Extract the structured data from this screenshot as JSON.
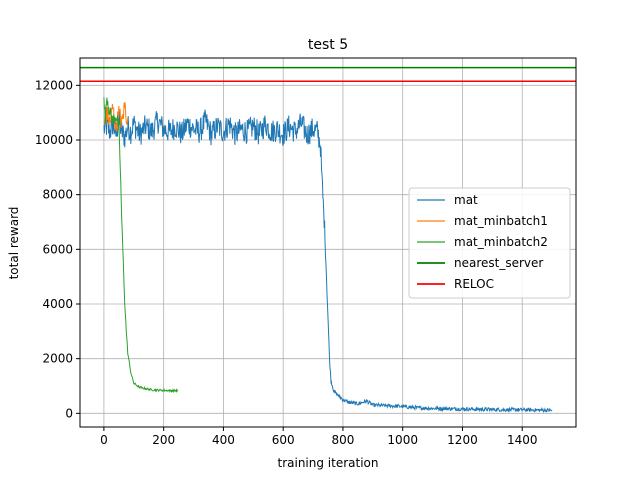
{
  "chart_data": {
    "type": "line",
    "title": "test 5",
    "xlabel": "training iteration",
    "ylabel": "total reward",
    "xlim": [
      -80,
      1580
    ],
    "ylim": [
      -500,
      13000
    ],
    "xticks": [
      0,
      200,
      400,
      600,
      800,
      1000,
      1200,
      1400
    ],
    "yticks": [
      0,
      2000,
      4000,
      6000,
      8000,
      10000,
      12000
    ],
    "grid": true,
    "legend_position": "center-right",
    "series": [
      {
        "name": "mat",
        "color": "#1f77b4",
        "style": "thin",
        "points": [
          [
            0,
            10400
          ],
          [
            10,
            10500
          ],
          [
            20,
            10300
          ],
          [
            30,
            10600
          ],
          [
            40,
            10200
          ],
          [
            50,
            10700
          ],
          [
            60,
            10300
          ],
          [
            70,
            10100
          ],
          [
            80,
            10500
          ],
          [
            90,
            10300
          ],
          [
            100,
            10600
          ],
          [
            120,
            10200
          ],
          [
            140,
            10500
          ],
          [
            160,
            10300
          ],
          [
            180,
            10700
          ],
          [
            200,
            10400
          ],
          [
            220,
            10300
          ],
          [
            240,
            10500
          ],
          [
            260,
            10200
          ],
          [
            280,
            10600
          ],
          [
            300,
            10400
          ],
          [
            320,
            10300
          ],
          [
            340,
            10700
          ],
          [
            360,
            10200
          ],
          [
            380,
            10500
          ],
          [
            400,
            10300
          ],
          [
            420,
            10600
          ],
          [
            440,
            10200
          ],
          [
            460,
            10400
          ],
          [
            480,
            10300
          ],
          [
            500,
            10500
          ],
          [
            520,
            10200
          ],
          [
            540,
            10600
          ],
          [
            560,
            10300
          ],
          [
            580,
            10400
          ],
          [
            600,
            10200
          ],
          [
            620,
            10500
          ],
          [
            640,
            10300
          ],
          [
            660,
            10600
          ],
          [
            680,
            10200
          ],
          [
            700,
            10400
          ],
          [
            715,
            10300
          ],
          [
            725,
            9800
          ],
          [
            730,
            8500
          ],
          [
            740,
            6500
          ],
          [
            745,
            5000
          ],
          [
            750,
            3500
          ],
          [
            755,
            2000
          ],
          [
            760,
            1200
          ],
          [
            770,
            800
          ],
          [
            780,
            700
          ],
          [
            800,
            500
          ],
          [
            820,
            400
          ],
          [
            850,
            350
          ],
          [
            880,
            450
          ],
          [
            900,
            300
          ],
          [
            950,
            280
          ],
          [
            1000,
            250
          ],
          [
            1050,
            200
          ],
          [
            1100,
            180
          ],
          [
            1150,
            170
          ],
          [
            1200,
            160
          ],
          [
            1250,
            150
          ],
          [
            1300,
            140
          ],
          [
            1350,
            130
          ],
          [
            1400,
            130
          ],
          [
            1450,
            120
          ],
          [
            1500,
            110
          ]
        ],
        "noise": 450
      },
      {
        "name": "mat_minbatch1",
        "color": "#ff7f0e",
        "style": "thin",
        "points": [
          [
            0,
            10500
          ],
          [
            10,
            11000
          ],
          [
            20,
            10600
          ],
          [
            30,
            11200
          ],
          [
            40,
            10400
          ],
          [
            50,
            11000
          ],
          [
            60,
            10600
          ],
          [
            70,
            11300
          ],
          [
            75,
            10900
          ],
          [
            80,
            10800
          ]
        ],
        "noise": 350
      },
      {
        "name": "mat_minbatch2",
        "color": "#2ca02c",
        "style": "thin",
        "points": [
          [
            0,
            11400
          ],
          [
            5,
            10800
          ],
          [
            10,
            11600
          ],
          [
            20,
            11000
          ],
          [
            30,
            10700
          ],
          [
            40,
            10900
          ],
          [
            50,
            10500
          ],
          [
            55,
            9000
          ],
          [
            60,
            7000
          ],
          [
            65,
            5500
          ],
          [
            70,
            4000
          ],
          [
            75,
            3000
          ],
          [
            80,
            2200
          ],
          [
            90,
            1500
          ],
          [
            100,
            1100
          ],
          [
            120,
            950
          ],
          [
            140,
            900
          ],
          [
            160,
            860
          ],
          [
            180,
            850
          ],
          [
            200,
            840
          ],
          [
            220,
            830
          ],
          [
            240,
            830
          ],
          [
            248,
            830
          ]
        ],
        "noise": 250
      },
      {
        "name": "nearest_server",
        "color": "#008000",
        "style": "hline",
        "y": 12650
      },
      {
        "name": "RELOC",
        "color": "#ff0000",
        "style": "hline",
        "y": 12150
      }
    ]
  }
}
